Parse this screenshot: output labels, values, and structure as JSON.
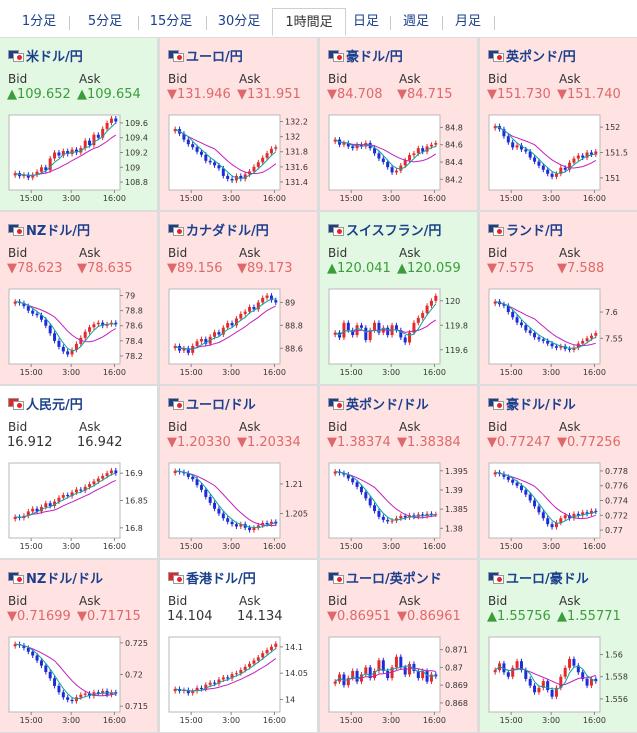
{
  "tabs": [
    {
      "label": "1分足",
      "active": false
    },
    {
      "label": "5分足",
      "active": false
    },
    {
      "label": "15分足",
      "active": false
    },
    {
      "label": "30分足",
      "active": false
    },
    {
      "label": "1時間足",
      "active": true
    },
    {
      "label": "日足",
      "active": false
    },
    {
      "label": "週足",
      "active": false
    },
    {
      "label": "月足",
      "active": false
    }
  ],
  "colors": {
    "up_bg": "#e3f8e3",
    "down_bg": "#ffe2e2",
    "flat_bg": "#ffffff",
    "up_text": "#3a9d3a",
    "down_text": "#e0686a",
    "flat_text": "#333333",
    "candle_up": "#e22b2b",
    "candle_down": "#1d2bd8",
    "ma_long": "#c020c0",
    "ma_short": "#0aa3a3",
    "link": "#1a3f8c"
  },
  "labels": {
    "bid": "Bid",
    "ask": "Ask"
  },
  "pairs": [
    {
      "name": "米ドル/円",
      "trend": "up",
      "flags": [
        "#1a3f8c",
        "#e0252b"
      ],
      "bid": "▲109.652",
      "ask": "▲109.654",
      "chart_data": {
        "type": "candlestick",
        "x_ticks": [
          "15:00",
          "3:00",
          "16:00"
        ],
        "y_ticks": [
          "109.6",
          "109.4",
          "109.2",
          "109",
          "108.8"
        ],
        "ylim": [
          108.72,
          109.68
        ],
        "closes": [
          108.92,
          108.88,
          108.9,
          108.86,
          108.9,
          108.94,
          109.0,
          108.96,
          109.12,
          109.2,
          109.16,
          109.22,
          109.18,
          109.24,
          109.2,
          109.26,
          109.36,
          109.3,
          109.44,
          109.4,
          109.52,
          109.6,
          109.66,
          109.62
        ]
      }
    },
    {
      "name": "ユーロ/円",
      "trend": "down",
      "flags": [
        "#1a3f8c",
        "#e0252b"
      ],
      "bid": "▼131.946",
      "ask": "▼131.951",
      "chart_data": {
        "type": "candlestick",
        "x_ticks": [
          "15:00",
          "3:00",
          "16:00"
        ],
        "y_ticks": [
          "132.2",
          "132",
          "131.8",
          "131.6",
          "131.4"
        ],
        "ylim": [
          131.32,
          132.26
        ],
        "closes": [
          132.1,
          132.04,
          131.96,
          131.9,
          131.86,
          131.8,
          131.76,
          131.68,
          131.66,
          131.62,
          131.58,
          131.48,
          131.44,
          131.42,
          131.48,
          131.44,
          131.5,
          131.54,
          131.6,
          131.66,
          131.72,
          131.78,
          131.84,
          131.86
        ]
      }
    },
    {
      "name": "豪ドル/円",
      "trend": "down",
      "flags": [
        "#1a3f8c",
        "#e0252b"
      ],
      "bid": "▼84.708",
      "ask": "▼84.715",
      "chart_data": {
        "type": "candlestick",
        "x_ticks": [
          "15:00",
          "3:00",
          "16:00"
        ],
        "y_ticks": [
          "84.8",
          "84.6",
          "84.4",
          "84.2"
        ],
        "ylim": [
          84.1,
          84.92
        ],
        "closes": [
          84.66,
          84.6,
          84.62,
          84.58,
          84.56,
          84.6,
          84.58,
          84.62,
          84.56,
          84.5,
          84.44,
          84.4,
          84.34,
          84.28,
          84.3,
          84.36,
          84.42,
          84.48,
          84.5,
          84.56,
          84.52,
          84.58,
          84.6,
          84.62
        ]
      }
    },
    {
      "name": "英ポンド/円",
      "trend": "down",
      "flags": [
        "#1a3f8c",
        "#e0252b"
      ],
      "bid": "▼151.730",
      "ask": "▼151.740",
      "chart_data": {
        "type": "candlestick",
        "x_ticks": [
          "15:00",
          "3:00",
          "16:00"
        ],
        "y_ticks": [
          "152",
          "151.5",
          "151"
        ],
        "ylim": [
          150.8,
          152.2
        ],
        "closes": [
          152.02,
          151.96,
          151.82,
          151.7,
          151.6,
          151.64,
          151.56,
          151.52,
          151.4,
          151.32,
          151.24,
          151.16,
          151.08,
          151.02,
          151.08,
          151.2,
          151.16,
          151.3,
          151.38,
          151.44,
          151.4,
          151.5,
          151.46,
          151.52
        ]
      }
    },
    {
      "name": "NZドル/円",
      "trend": "down",
      "flags": [
        "#1a3f8c",
        "#e0252b"
      ],
      "bid": "▼78.623",
      "ask": "▼78.635",
      "chart_data": {
        "type": "candlestick",
        "x_ticks": [
          "15:00",
          "3:00",
          "16:00"
        ],
        "y_ticks": [
          "79",
          "78.8",
          "78.6",
          "78.4",
          "78.2"
        ],
        "ylim": [
          78.12,
          79.06
        ],
        "closes": [
          78.92,
          78.9,
          78.86,
          78.8,
          78.76,
          78.74,
          78.68,
          78.6,
          78.5,
          78.4,
          78.32,
          78.26,
          78.22,
          78.28,
          78.36,
          78.44,
          78.52,
          78.58,
          78.62,
          78.64,
          78.6,
          78.62,
          78.64,
          78.62
        ]
      }
    },
    {
      "name": "カナダドル/円",
      "trend": "down",
      "flags": [
        "#1a3f8c",
        "#e0252b"
      ],
      "bid": "▼89.156",
      "ask": "▼89.173",
      "chart_data": {
        "type": "candlestick",
        "x_ticks": [
          "15:00",
          "3:00",
          "16:00"
        ],
        "y_ticks": [
          "89",
          "88.8",
          "88.6"
        ],
        "ylim": [
          88.48,
          89.1
        ],
        "closes": [
          88.62,
          88.58,
          88.6,
          88.56,
          88.62,
          88.66,
          88.68,
          88.64,
          88.7,
          88.74,
          88.72,
          88.78,
          88.82,
          88.8,
          88.86,
          88.9,
          88.92,
          88.96,
          88.94,
          89.0,
          89.04,
          89.06,
          89.02,
          89.0
        ]
      }
    },
    {
      "name": "スイスフラン/円",
      "trend": "up",
      "flags": [
        "#1a3f8c",
        "#e0252b"
      ],
      "bid": "▲120.041",
      "ask": "▲120.059",
      "chart_data": {
        "type": "candlestick",
        "x_ticks": [
          "15:00",
          "3:00",
          "16:00"
        ],
        "y_ticks": [
          "120",
          "119.8",
          "119.6"
        ],
        "ylim": [
          119.5,
          120.08
        ],
        "closes": [
          119.74,
          119.7,
          119.82,
          119.76,
          119.72,
          119.8,
          119.78,
          119.68,
          119.76,
          119.82,
          119.74,
          119.78,
          119.72,
          119.8,
          119.76,
          119.7,
          119.66,
          119.74,
          119.82,
          119.86,
          119.9,
          119.96,
          120.0,
          120.04
        ]
      }
    },
    {
      "name": "ランド/円",
      "trend": "down",
      "flags": [
        "#1a3f8c",
        "#e0252b"
      ],
      "bid": "▼7.575",
      "ask": "▼7.588",
      "chart_data": {
        "type": "candlestick",
        "x_ticks": [
          "15:00",
          "3:00",
          "16:00"
        ],
        "y_ticks": [
          "7.6",
          "7.55"
        ],
        "ylim": [
          7.505,
          7.64
        ],
        "closes": [
          7.62,
          7.615,
          7.612,
          7.6,
          7.59,
          7.58,
          7.575,
          7.565,
          7.56,
          7.552,
          7.548,
          7.545,
          7.54,
          7.535,
          7.532,
          7.535,
          7.53,
          7.528,
          7.532,
          7.54,
          7.545,
          7.55,
          7.555,
          7.56
        ]
      }
    },
    {
      "name": "人民元/円",
      "trend": "flat",
      "flags": [
        "#e0252b",
        "#e0252b"
      ],
      "bid": "16.912",
      "ask": "16.942",
      "chart_data": {
        "type": "candlestick",
        "x_ticks": [
          "15:00",
          "3:00",
          "16:00"
        ],
        "y_ticks": [
          "16.9",
          "16.85",
          "16.8"
        ],
        "ylim": [
          16.785,
          16.915
        ],
        "closes": [
          16.82,
          16.818,
          16.822,
          16.83,
          16.835,
          16.83,
          16.838,
          16.845,
          16.84,
          16.848,
          16.855,
          16.86,
          16.858,
          16.865,
          16.87,
          16.868,
          16.875,
          16.88,
          16.885,
          16.89,
          16.895,
          16.9,
          16.905,
          16.9
        ]
      }
    },
    {
      "name": "ユーロ/ドル",
      "trend": "down",
      "flags": [
        "#1a3f8c",
        "#e0252b"
      ],
      "bid": "▼1.20330",
      "ask": "▼1.20334",
      "chart_data": {
        "type": "candlestick",
        "x_ticks": [
          "15:00",
          "3:00",
          "16:00"
        ],
        "y_ticks": [
          "1.21",
          "1.205"
        ],
        "ylim": [
          1.2012,
          1.2132
        ],
        "closes": [
          1.2122,
          1.212,
          1.2118,
          1.2112,
          1.2108,
          1.2098,
          1.209,
          1.2078,
          1.2068,
          1.2058,
          1.205,
          1.2042,
          1.2036,
          1.2032,
          1.2028,
          1.2032,
          1.2026,
          1.2022,
          1.2026,
          1.203,
          1.2034,
          1.2032,
          1.2036,
          1.2033
        ]
      }
    },
    {
      "name": "英ポンド/ドル",
      "trend": "down",
      "flags": [
        "#1a3f8c",
        "#e0252b"
      ],
      "bid": "▼1.38374",
      "ask": "▼1.38384",
      "chart_data": {
        "type": "candlestick",
        "x_ticks": [
          "15:00",
          "3:00",
          "16:00"
        ],
        "y_ticks": [
          "1.395",
          "1.39",
          "1.385",
          "1.38"
        ],
        "ylim": [
          1.378,
          1.3965
        ],
        "closes": [
          1.3948,
          1.3944,
          1.394,
          1.393,
          1.392,
          1.3908,
          1.3894,
          1.3878,
          1.386,
          1.3845,
          1.383,
          1.3822,
          1.3818,
          1.382,
          1.3826,
          1.3832,
          1.3828,
          1.3834,
          1.383,
          1.3836,
          1.3832,
          1.3838,
          1.3836,
          1.3837
        ]
      }
    },
    {
      "name": "豪ドル/ドル",
      "trend": "down",
      "flags": [
        "#1a3f8c",
        "#e0252b"
      ],
      "bid": "▼0.77247",
      "ask": "▼0.77256",
      "chart_data": {
        "type": "candlestick",
        "x_ticks": [
          "15:00",
          "3:00",
          "16:00"
        ],
        "y_ticks": [
          "0.778",
          "0.776",
          "0.774",
          "0.772",
          "0.77"
        ],
        "ylim": [
          0.7692,
          0.7788
        ],
        "closes": [
          0.7778,
          0.7776,
          0.7772,
          0.7768,
          0.7764,
          0.776,
          0.7754,
          0.7748,
          0.774,
          0.7732,
          0.7724,
          0.7716,
          0.7708,
          0.7704,
          0.771,
          0.7716,
          0.772,
          0.7716,
          0.7722,
          0.772,
          0.7724,
          0.7722,
          0.7726,
          0.7725
        ]
      }
    },
    {
      "name": "NZドル/ドル",
      "trend": "down",
      "flags": [
        "#1a3f8c",
        "#e0252b"
      ],
      "bid": "▼0.71699",
      "ask": "▼0.71715",
      "chart_data": {
        "type": "candlestick",
        "x_ticks": [
          "15:00",
          "3:00",
          "16:00"
        ],
        "y_ticks": [
          "0.725",
          "0.72",
          "0.715"
        ],
        "ylim": [
          0.7144,
          0.7256
        ],
        "closes": [
          0.7248,
          0.7246,
          0.7242,
          0.7236,
          0.723,
          0.7222,
          0.7214,
          0.7204,
          0.7194,
          0.7182,
          0.7172,
          0.7164,
          0.716,
          0.7158,
          0.7164,
          0.7168,
          0.717,
          0.7166,
          0.7172,
          0.717,
          0.7174,
          0.7168,
          0.7172,
          0.717
        ]
      }
    },
    {
      "name": "香港ドル/円",
      "trend": "flat",
      "flags": [
        "#e0252b",
        "#e0252b"
      ],
      "bid": "14.104",
      "ask": "14.134",
      "chart_data": {
        "type": "candlestick",
        "x_ticks": [
          "15:00",
          "3:00",
          "16:00"
        ],
        "y_ticks": [
          "14.1",
          "14.05",
          "14"
        ],
        "ylim": [
          13.98,
          14.115
        ],
        "closes": [
          14.02,
          14.016,
          14.018,
          14.012,
          14.016,
          14.022,
          14.02,
          14.028,
          14.032,
          14.03,
          14.038,
          14.042,
          14.04,
          14.048,
          14.05,
          14.056,
          14.062,
          14.068,
          14.074,
          14.08,
          14.088,
          14.094,
          14.1,
          14.106
        ]
      }
    },
    {
      "name": "ユーロ/英ポンド",
      "trend": "down",
      "flags": [
        "#1a3f8c",
        "#e0252b"
      ],
      "bid": "▼0.86951",
      "ask": "▼0.86961",
      "chart_data": {
        "type": "candlestick",
        "x_ticks": [
          "15:00",
          "3:00",
          "16:00"
        ],
        "y_ticks": [
          "0.871",
          "0.87",
          "0.869",
          "0.868"
        ],
        "ylim": [
          0.8676,
          0.8716
        ],
        "closes": [
          0.8692,
          0.8696,
          0.869,
          0.8694,
          0.8698,
          0.8692,
          0.8696,
          0.87,
          0.8694,
          0.8698,
          0.8704,
          0.8698,
          0.8694,
          0.87,
          0.8706,
          0.87,
          0.8696,
          0.8702,
          0.8698,
          0.8694,
          0.8698,
          0.8692,
          0.8696,
          0.8695
        ]
      }
    },
    {
      "name": "ユーロ/豪ドル",
      "trend": "up",
      "flags": [
        "#1a3f8c",
        "#e0252b"
      ],
      "bid": "▲1.55756",
      "ask": "▲1.55771",
      "chart_data": {
        "type": "candlestick",
        "x_ticks": [
          "15:00",
          "3:00",
          "16:00"
        ],
        "y_ticks": [
          "1.56",
          "1.558",
          "1.556"
        ],
        "ylim": [
          1.555,
          1.5614
        ],
        "closes": [
          1.5586,
          1.5592,
          1.5584,
          1.558,
          1.5588,
          1.5594,
          1.5586,
          1.5578,
          1.5572,
          1.5566,
          1.557,
          1.5576,
          1.5568,
          1.5562,
          1.557,
          1.558,
          1.5588,
          1.5596,
          1.559,
          1.5584,
          1.5578,
          1.5572,
          1.5578,
          1.5576
        ]
      }
    }
  ]
}
